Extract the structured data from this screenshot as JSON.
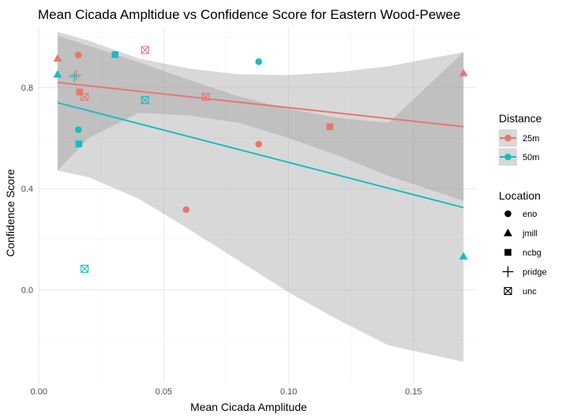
{
  "chart_data": {
    "type": "scatter",
    "title": "Mean Cicada Ampltidue vs Confidence Score for Eastern Wood-Pewee",
    "xlabel": "Mean Cicada Amplitude",
    "ylabel": "Confidence Score",
    "xlim": [
      -0.0004,
      0.175
    ],
    "ylim": [
      -0.37,
      1.04
    ],
    "x_ticks": [
      0.0,
      0.05,
      0.1,
      0.15
    ],
    "x_tick_labels": [
      "0.00",
      "0.05",
      "0.10",
      "0.15"
    ],
    "y_ticks": [
      0.0,
      0.4,
      0.8
    ],
    "y_tick_labels": [
      "0.0",
      "0.4",
      "0.8"
    ],
    "grid": true,
    "colors": {
      "25m": "#e8766d",
      "50m": "#16bdc2",
      "band": "#999999"
    },
    "legends": [
      {
        "title": "Distance",
        "entries": [
          "25m",
          "50m"
        ]
      },
      {
        "title": "Location",
        "entries": [
          "eno",
          "jmill",
          "ncbg",
          "pridge",
          "unc"
        ]
      }
    ],
    "series": [
      {
        "name": "25m",
        "points": [
          {
            "x": 0.0158,
            "y": 0.928,
            "location": "eno"
          },
          {
            "x": 0.059,
            "y": 0.317,
            "location": "eno"
          },
          {
            "x": 0.088,
            "y": 0.576,
            "location": "eno"
          },
          {
            "x": 0.0075,
            "y": 0.915,
            "location": "jmill"
          },
          {
            "x": 0.17,
            "y": 0.857,
            "location": "jmill"
          },
          {
            "x": 0.0163,
            "y": 0.782,
            "location": "ncbg"
          },
          {
            "x": 0.1165,
            "y": 0.645,
            "location": "ncbg"
          },
          {
            "x": 0.015,
            "y": 0.85,
            "location": "pridge"
          },
          {
            "x": 0.0183,
            "y": 0.763,
            "location": "unc"
          },
          {
            "x": 0.0425,
            "y": 0.948,
            "location": "unc"
          },
          {
            "x": 0.0668,
            "y": 0.763,
            "location": "unc"
          }
        ],
        "fit": {
          "x": [
            0.0075,
            0.17
          ],
          "y": [
            0.82,
            0.645
          ]
        },
        "band": {
          "x": [
            0.0075,
            0.02,
            0.04,
            0.06,
            0.08,
            0.1,
            0.12,
            0.14,
            0.17
          ],
          "lower": [
            0.472,
            0.6,
            0.7,
            0.69,
            0.66,
            0.6,
            0.53,
            0.45,
            0.352
          ],
          "upper": [
            1.02,
            0.985,
            0.915,
            0.875,
            0.852,
            0.849,
            0.861,
            0.884,
            0.94
          ]
        }
      },
      {
        "name": "50m",
        "points": [
          {
            "x": 0.0158,
            "y": 0.633,
            "location": "eno"
          },
          {
            "x": 0.088,
            "y": 0.902,
            "location": "eno"
          },
          {
            "x": 0.0075,
            "y": 0.852,
            "location": "jmill"
          },
          {
            "x": 0.17,
            "y": 0.132,
            "location": "jmill"
          },
          {
            "x": 0.016,
            "y": 0.577,
            "location": "ncbg"
          },
          {
            "x": 0.0305,
            "y": 0.93,
            "location": "ncbg"
          },
          {
            "x": 0.0142,
            "y": 0.843,
            "location": "pridge"
          },
          {
            "x": 0.0183,
            "y": 0.083,
            "location": "unc"
          },
          {
            "x": 0.0425,
            "y": 0.75,
            "location": "unc"
          }
        ],
        "fit": {
          "x": [
            0.0075,
            0.17
          ],
          "y": [
            0.74,
            0.325
          ]
        },
        "band": {
          "x": [
            0.0075,
            0.02,
            0.04,
            0.06,
            0.08,
            0.1,
            0.12,
            0.14,
            0.17
          ],
          "lower": [
            0.472,
            0.445,
            0.36,
            0.24,
            0.115,
            -0.01,
            -0.12,
            -0.22,
            -0.285
          ],
          "upper": [
            1.005,
            0.965,
            0.9,
            0.83,
            0.765,
            0.715,
            0.68,
            0.66,
            0.94
          ]
        }
      }
    ]
  }
}
